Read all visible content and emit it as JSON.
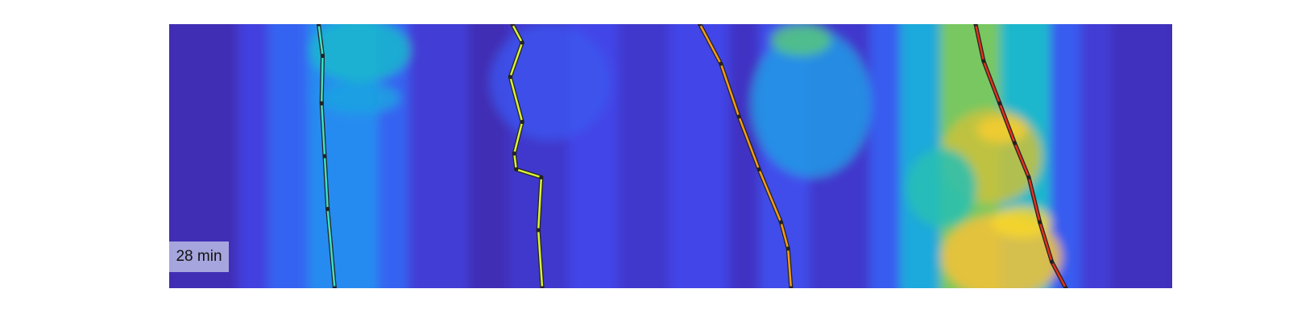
{
  "chart_data": {
    "type": "heatmap",
    "time_label": "28 min",
    "colormap": [
      "#3e26a8",
      "#4346e8",
      "#2a7ef9",
      "#18b4d3",
      "#2fc6a1",
      "#a4c739",
      "#f6ba3a",
      "#f9e51f"
    ],
    "xlim": [
      0,
      1
    ],
    "ylim": [
      0,
      1
    ],
    "columns": [
      {
        "x0": 0.0,
        "x1": 0.07,
        "value": 0.03
      },
      {
        "x0": 0.07,
        "x1": 0.1,
        "value": 0.12
      },
      {
        "x0": 0.1,
        "x1": 0.14,
        "value": 0.22
      },
      {
        "x0": 0.14,
        "x1": 0.21,
        "value": 0.32
      },
      {
        "x0": 0.21,
        "x1": 0.24,
        "value": 0.22
      },
      {
        "x0": 0.24,
        "x1": 0.3,
        "value": 0.1
      },
      {
        "x0": 0.3,
        "x1": 0.34,
        "value": 0.03
      },
      {
        "x0": 0.34,
        "x1": 0.4,
        "value": 0.08
      },
      {
        "x0": 0.4,
        "x1": 0.45,
        "value": 0.14
      },
      {
        "x0": 0.45,
        "x1": 0.5,
        "value": 0.08
      },
      {
        "x0": 0.5,
        "x1": 0.56,
        "value": 0.14
      },
      {
        "x0": 0.56,
        "x1": 0.59,
        "value": 0.06
      },
      {
        "x0": 0.59,
        "x1": 0.64,
        "value": 0.16
      },
      {
        "x0": 0.64,
        "x1": 0.7,
        "value": 0.08
      },
      {
        "x0": 0.7,
        "x1": 0.73,
        "value": 0.2
      },
      {
        "x0": 0.73,
        "x1": 0.77,
        "value": 0.4
      },
      {
        "x0": 0.77,
        "x1": 0.83,
        "value": 0.66
      },
      {
        "x0": 0.83,
        "x1": 0.88,
        "value": 0.45
      },
      {
        "x0": 0.88,
        "x1": 0.91,
        "value": 0.2
      },
      {
        "x0": 0.91,
        "x1": 0.94,
        "value": 0.1
      },
      {
        "x0": 0.94,
        "x1": 1.0,
        "value": 0.05
      }
    ],
    "hotspots": [
      {
        "x": 0.19,
        "y": 0.1,
        "rx": 0.05,
        "ry": 0.12,
        "value": 0.45
      },
      {
        "x": 0.19,
        "y": 0.28,
        "rx": 0.04,
        "ry": 0.06,
        "value": 0.38
      },
      {
        "x": 0.38,
        "y": 0.22,
        "rx": 0.06,
        "ry": 0.22,
        "value": 0.18
      },
      {
        "x": 0.64,
        "y": 0.3,
        "rx": 0.06,
        "ry": 0.28,
        "value": 0.36
      },
      {
        "x": 0.63,
        "y": 0.06,
        "rx": 0.03,
        "ry": 0.06,
        "value": 0.62
      },
      {
        "x": 0.83,
        "y": 0.88,
        "rx": 0.06,
        "ry": 0.16,
        "value": 0.88
      },
      {
        "x": 0.82,
        "y": 0.5,
        "rx": 0.05,
        "ry": 0.18,
        "value": 0.78
      },
      {
        "x": 0.83,
        "y": 0.4,
        "rx": 0.025,
        "ry": 0.05,
        "value": 0.92
      },
      {
        "x": 0.85,
        "y": 0.75,
        "rx": 0.03,
        "ry": 0.06,
        "value": 0.95
      },
      {
        "x": 0.77,
        "y": 0.62,
        "rx": 0.035,
        "ry": 0.15,
        "value": 0.52
      }
    ],
    "series": [
      {
        "color": "#3ee0c8",
        "points": [
          [
            0.149,
            0.0
          ],
          [
            0.153,
            0.12
          ],
          [
            0.152,
            0.3
          ],
          [
            0.155,
            0.5
          ],
          [
            0.158,
            0.7
          ],
          [
            0.165,
            1.0
          ]
        ]
      },
      {
        "color": "#d9f13a",
        "points": [
          [
            0.342,
            0.0
          ],
          [
            0.352,
            0.07
          ],
          [
            0.34,
            0.2
          ],
          [
            0.352,
            0.37
          ],
          [
            0.344,
            0.49
          ],
          [
            0.346,
            0.55
          ],
          [
            0.371,
            0.58
          ],
          [
            0.368,
            0.78
          ],
          [
            0.372,
            1.0
          ]
        ]
      },
      {
        "color": "#f59b1a",
        "points": [
          [
            0.529,
            0.0
          ],
          [
            0.55,
            0.15
          ],
          [
            0.568,
            0.35
          ],
          [
            0.588,
            0.55
          ],
          [
            0.61,
            0.75
          ],
          [
            0.617,
            0.85
          ],
          [
            0.62,
            1.0
          ]
        ]
      },
      {
        "color": "#e0321e",
        "points": [
          [
            0.804,
            0.0
          ],
          [
            0.812,
            0.14
          ],
          [
            0.828,
            0.3
          ],
          [
            0.843,
            0.45
          ],
          [
            0.857,
            0.58
          ],
          [
            0.868,
            0.75
          ],
          [
            0.88,
            0.9
          ],
          [
            0.894,
            1.0
          ]
        ]
      }
    ]
  }
}
